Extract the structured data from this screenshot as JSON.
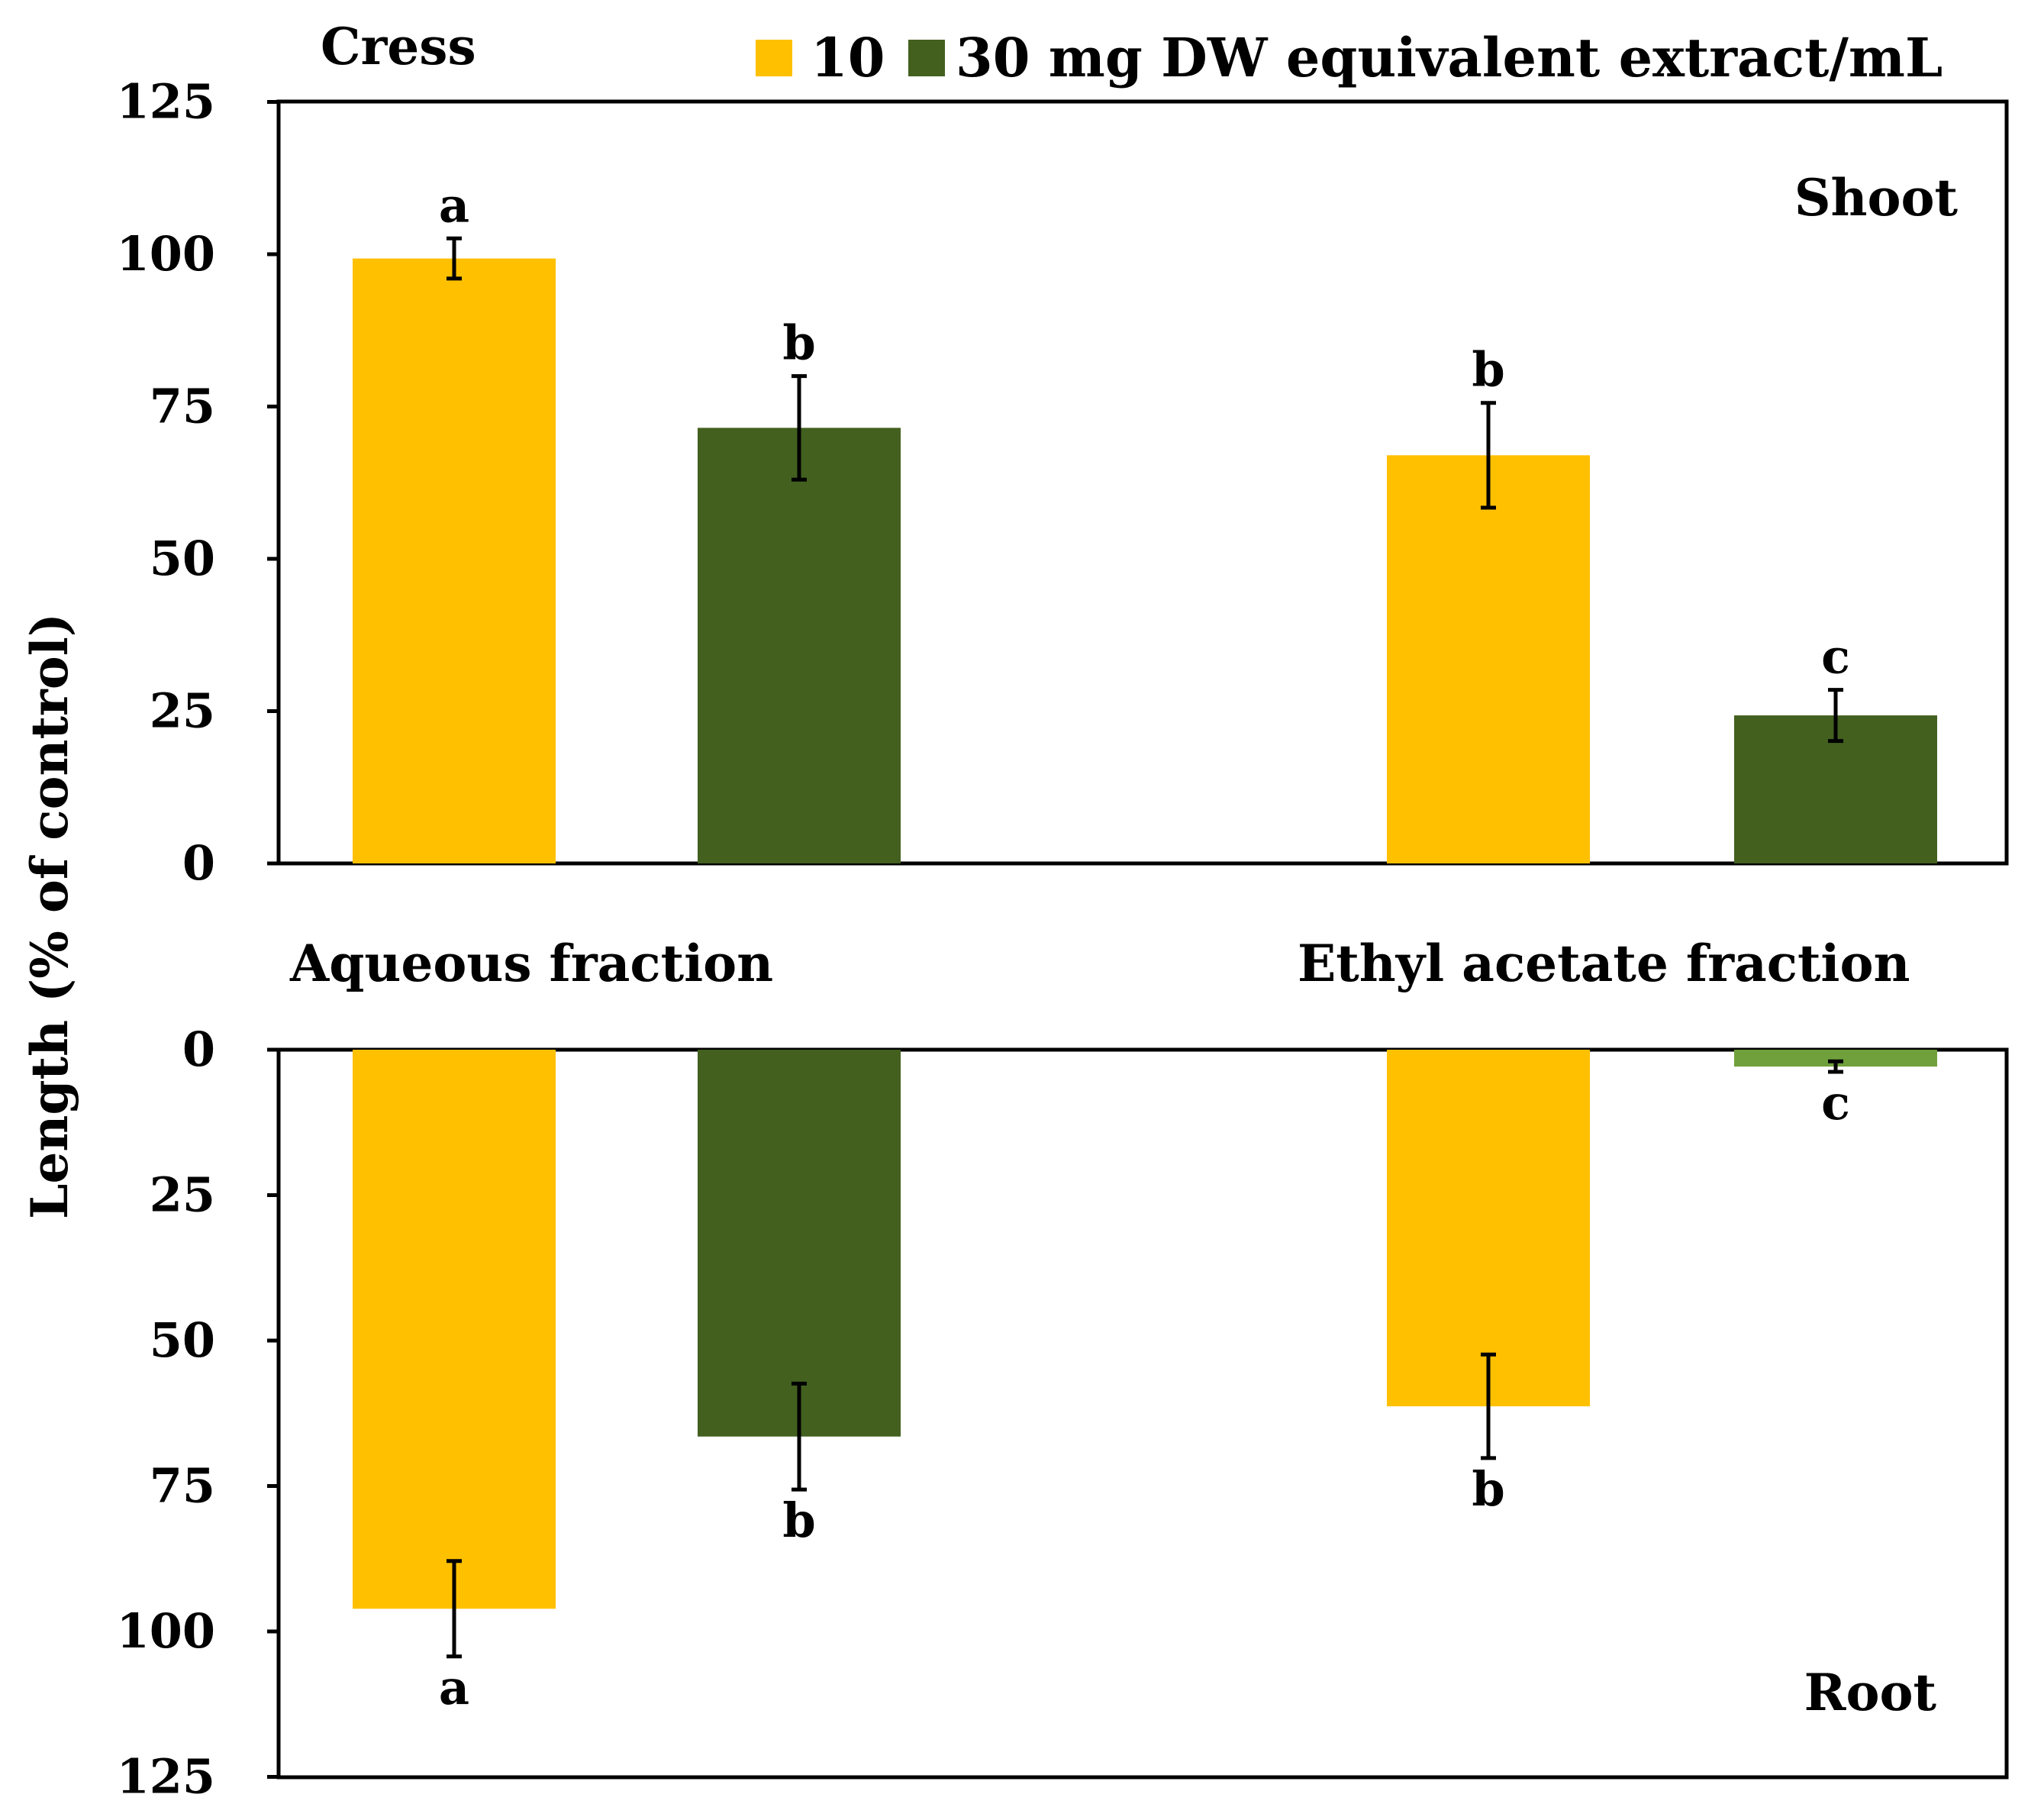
{
  "chart_data": {
    "type": "bar",
    "title": "Cress",
    "ylabel": "Length (% of control)",
    "legend": {
      "position": "top-right",
      "entries": [
        {
          "label": "10",
          "color": "#FFC000"
        },
        {
          "label": "30 mg DW equivalent extract/mL",
          "color": "#43601F"
        }
      ]
    },
    "categories": [
      "Aqueous fraction",
      "Ethyl acetate fraction"
    ],
    "panels": [
      {
        "name": "Shoot",
        "label": "Shoot",
        "ylim": [
          0,
          125
        ],
        "yticks": [
          "0",
          "25",
          "50",
          "75",
          "100",
          "125"
        ],
        "series": [
          {
            "name": "10",
            "values": [
              99.3,
              67
            ],
            "errors": [
              3.3,
              8.6
            ],
            "letters": [
              "a",
              "b"
            ]
          },
          {
            "name": "30 mg DW equivalent extract/mL",
            "values": [
              71.5,
              24.3
            ],
            "errors": [
              8.5,
              4.2
            ],
            "letters": [
              "b",
              "c"
            ]
          }
        ]
      },
      {
        "name": "Root",
        "label": "Root",
        "ylim": [
          0,
          125
        ],
        "yticks": [
          "0",
          "25",
          "50",
          "75",
          "100",
          "125"
        ],
        "series": [
          {
            "name": "10",
            "values": [
              96.1,
              61.3
            ],
            "errors": [
              8.2,
              8.9
            ],
            "letters": [
              "a",
              "b"
            ]
          },
          {
            "name": "30 mg DW equivalent extract/mL",
            "values": [
              66.5,
              2.9
            ],
            "errors": [
              9.1,
              0.9
            ],
            "letters": [
              "b",
              "c"
            ]
          }
        ]
      }
    ],
    "colors": {
      "series_10": "#FFC000",
      "series_30": "#43601F",
      "series_30_small": "#70A03C"
    }
  }
}
